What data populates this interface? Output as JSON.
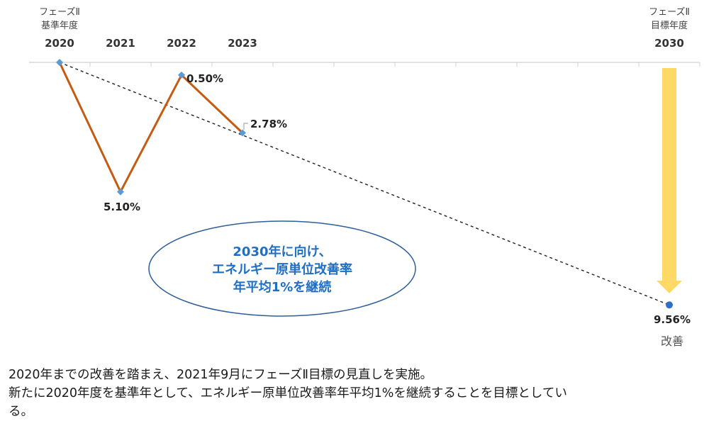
{
  "header": {
    "base": {
      "line1": "フェーズⅡ",
      "line2": "基準年度",
      "year": "2020"
    },
    "target": {
      "line1": "フェーズⅡ",
      "line2": "目標年度",
      "year": "2030"
    },
    "years": [
      "2021",
      "2022",
      "2023"
    ]
  },
  "chart_data": {
    "type": "line",
    "x": [
      2020,
      2021,
      2022,
      2023
    ],
    "series": [
      {
        "values": [
          0,
          -5.1,
          -0.5,
          -2.78
        ],
        "color": "#c55a11"
      }
    ],
    "data_labels": [
      "5.10%",
      "0.50%",
      "2.78%"
    ],
    "target": {
      "x": 2030,
      "value": -9.56,
      "label": "9.56%",
      "sublabel": "改善"
    },
    "target_line": {
      "from": [
        2020,
        0
      ],
      "to": [
        2030,
        -9.56
      ],
      "style": "dashed"
    },
    "marker_color": "#5b9bd5",
    "target_marker_color": "#2f6fc5",
    "arrow_color": "#ffd966",
    "ylim": [
      -10.5,
      0
    ]
  },
  "callout": {
    "line1": "2030年に向け、",
    "line2": "エネルギー原単位改善率",
    "line3": "年平均1%を継続"
  },
  "caption": {
    "line1": "2020年までの改善を踏まえ、2021年9月にフェーズⅡ目標の見直しを実施。",
    "line2": "新たに2020年度を基準年として、エネルギー原単位改善率年平均1%を継続することを目標としてい",
    "line3": "る。"
  }
}
